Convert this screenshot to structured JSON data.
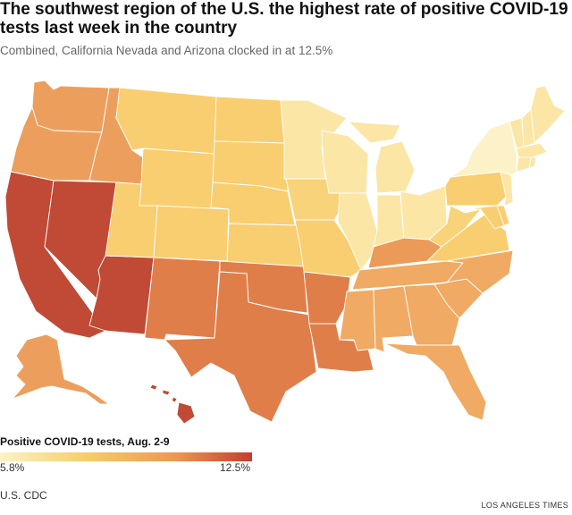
{
  "header": {
    "title": "The southwest region of the U.S. the highest rate of positive COVID-19 tests last week in the country",
    "subtitle": "Combined, California Nevada and Arizona clocked in at 12.5%"
  },
  "legend": {
    "title": "Positive COVID-19 tests, Aug. 2-9",
    "min_label": "5.8%",
    "max_label": "12.5%",
    "min_value": 5.8,
    "max_value": 12.5,
    "colors": [
      "#fcf3c6",
      "#f7cb6a",
      "#ec9752",
      "#c33d31"
    ]
  },
  "footer": {
    "source": "U.S. CDC",
    "credit": "LOS ANGELES TIMES"
  },
  "map_data": {
    "type": "choropleth",
    "metric": "Positive COVID-19 tests",
    "regions": [
      {
        "name": "California",
        "color": "#c04a35"
      },
      {
        "name": "Nevada",
        "color": "#c04a35"
      },
      {
        "name": "Arizona",
        "color": "#c04a35"
      },
      {
        "name": "Hawaii",
        "color": "#c04a35"
      },
      {
        "name": "Washington",
        "color": "#ec9f5d"
      },
      {
        "name": "Oregon",
        "color": "#ec9f5d"
      },
      {
        "name": "Idaho",
        "color": "#ec9f5d"
      },
      {
        "name": "Alaska",
        "color": "#ec9f5d"
      },
      {
        "name": "New Mexico",
        "color": "#e07e4a"
      },
      {
        "name": "Texas",
        "color": "#e07e4a"
      },
      {
        "name": "Oklahoma",
        "color": "#e07e4a"
      },
      {
        "name": "Arkansas",
        "color": "#e07e4a"
      },
      {
        "name": "Louisiana",
        "color": "#e07e4a"
      },
      {
        "name": "Mississippi",
        "color": "#f0aa63"
      },
      {
        "name": "Alabama",
        "color": "#f0aa63"
      },
      {
        "name": "Georgia",
        "color": "#f0aa63"
      },
      {
        "name": "Florida",
        "color": "#f0aa63"
      },
      {
        "name": "Tennessee",
        "color": "#f0aa63"
      },
      {
        "name": "Kentucky",
        "color": "#ec9a58"
      },
      {
        "name": "South Carolina",
        "color": "#f0aa63"
      },
      {
        "name": "North Carolina",
        "color": "#f0aa63"
      },
      {
        "name": "Montana",
        "color": "#f8ce70"
      },
      {
        "name": "Wyoming",
        "color": "#f8ce70"
      },
      {
        "name": "Utah",
        "color": "#f8ce70"
      },
      {
        "name": "Colorado",
        "color": "#f8ce70"
      },
      {
        "name": "North Dakota",
        "color": "#f8ce70"
      },
      {
        "name": "South Dakota",
        "color": "#f8ce70"
      },
      {
        "name": "Nebraska",
        "color": "#f8ce70"
      },
      {
        "name": "Kansas",
        "color": "#f8ce70"
      },
      {
        "name": "Missouri",
        "color": "#f8ce70"
      },
      {
        "name": "Iowa",
        "color": "#f8d37a"
      },
      {
        "name": "Pennsylvania",
        "color": "#f8ce70"
      },
      {
        "name": "Virginia",
        "color": "#f8ce70"
      },
      {
        "name": "West Virginia",
        "color": "#f8d37a"
      },
      {
        "name": "Maryland",
        "color": "#f8ce70"
      },
      {
        "name": "Delaware",
        "color": "#f8ce70"
      },
      {
        "name": "Minnesota",
        "color": "#fbe6a6"
      },
      {
        "name": "Wisconsin",
        "color": "#fbe6a6"
      },
      {
        "name": "Michigan",
        "color": "#fbe6a6"
      },
      {
        "name": "Illinois",
        "color": "#fbe6a6"
      },
      {
        "name": "Indiana",
        "color": "#fbe6a6"
      },
      {
        "name": "Ohio",
        "color": "#fbe6a6"
      },
      {
        "name": "Maine",
        "color": "#fbe6a6"
      },
      {
        "name": "New Hampshire",
        "color": "#fbe6a6"
      },
      {
        "name": "Vermont",
        "color": "#fbe6a6"
      },
      {
        "name": "Massachusetts",
        "color": "#fbe6a6"
      },
      {
        "name": "Rhode Island",
        "color": "#fbe6a6"
      },
      {
        "name": "Connecticut",
        "color": "#fbe6a6"
      },
      {
        "name": "New Jersey",
        "color": "#fbe6a6"
      },
      {
        "name": "New York",
        "color": "#fdf1c8"
      }
    ]
  }
}
